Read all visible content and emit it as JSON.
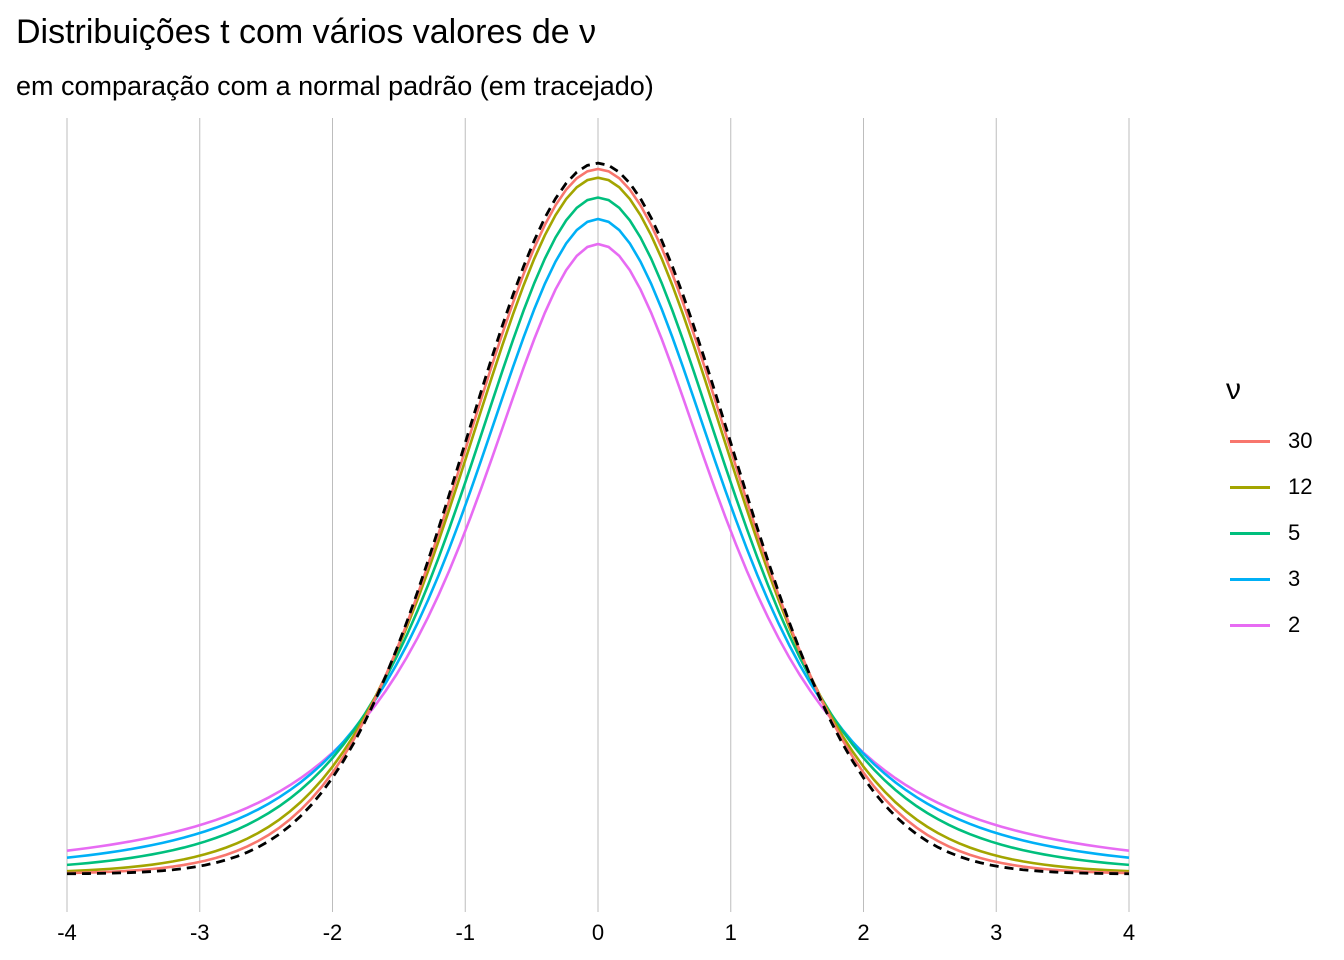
{
  "header": {
    "title": "Distribuições t com vários valores de ν",
    "subtitle": "em comparação com a normal padrão (em tracejado)"
  },
  "chart_data": {
    "type": "line",
    "title": "Distribuições t com vários valores de ν",
    "subtitle": "em comparação com a normal padrão (em tracejado)",
    "xlabel": "",
    "ylabel": "",
    "xlim": [
      -4,
      4
    ],
    "x_ticks": [
      "-4",
      "-3",
      "-2",
      "-1",
      "0",
      "1",
      "2",
      "3",
      "4"
    ],
    "y_axis_shown": false,
    "grid": "vertical major lines only",
    "legend": {
      "title": "ν",
      "placement": "right"
    },
    "x_step": 0.08,
    "reference": {
      "name": "",
      "style": "dashed",
      "color": "#000000",
      "distribution": "normal(0,1)"
    },
    "series": [
      {
        "name": "30",
        "df": 30,
        "color": "#F8766D"
      },
      {
        "name": "12",
        "df": 12,
        "color": "#A3A500"
      },
      {
        "name": "5",
        "df": 5,
        "color": "#00BF7D"
      },
      {
        "name": "3",
        "df": 3,
        "color": "#00B0F6"
      },
      {
        "name": "2",
        "df": 2,
        "color": "#E76BF3"
      }
    ]
  }
}
